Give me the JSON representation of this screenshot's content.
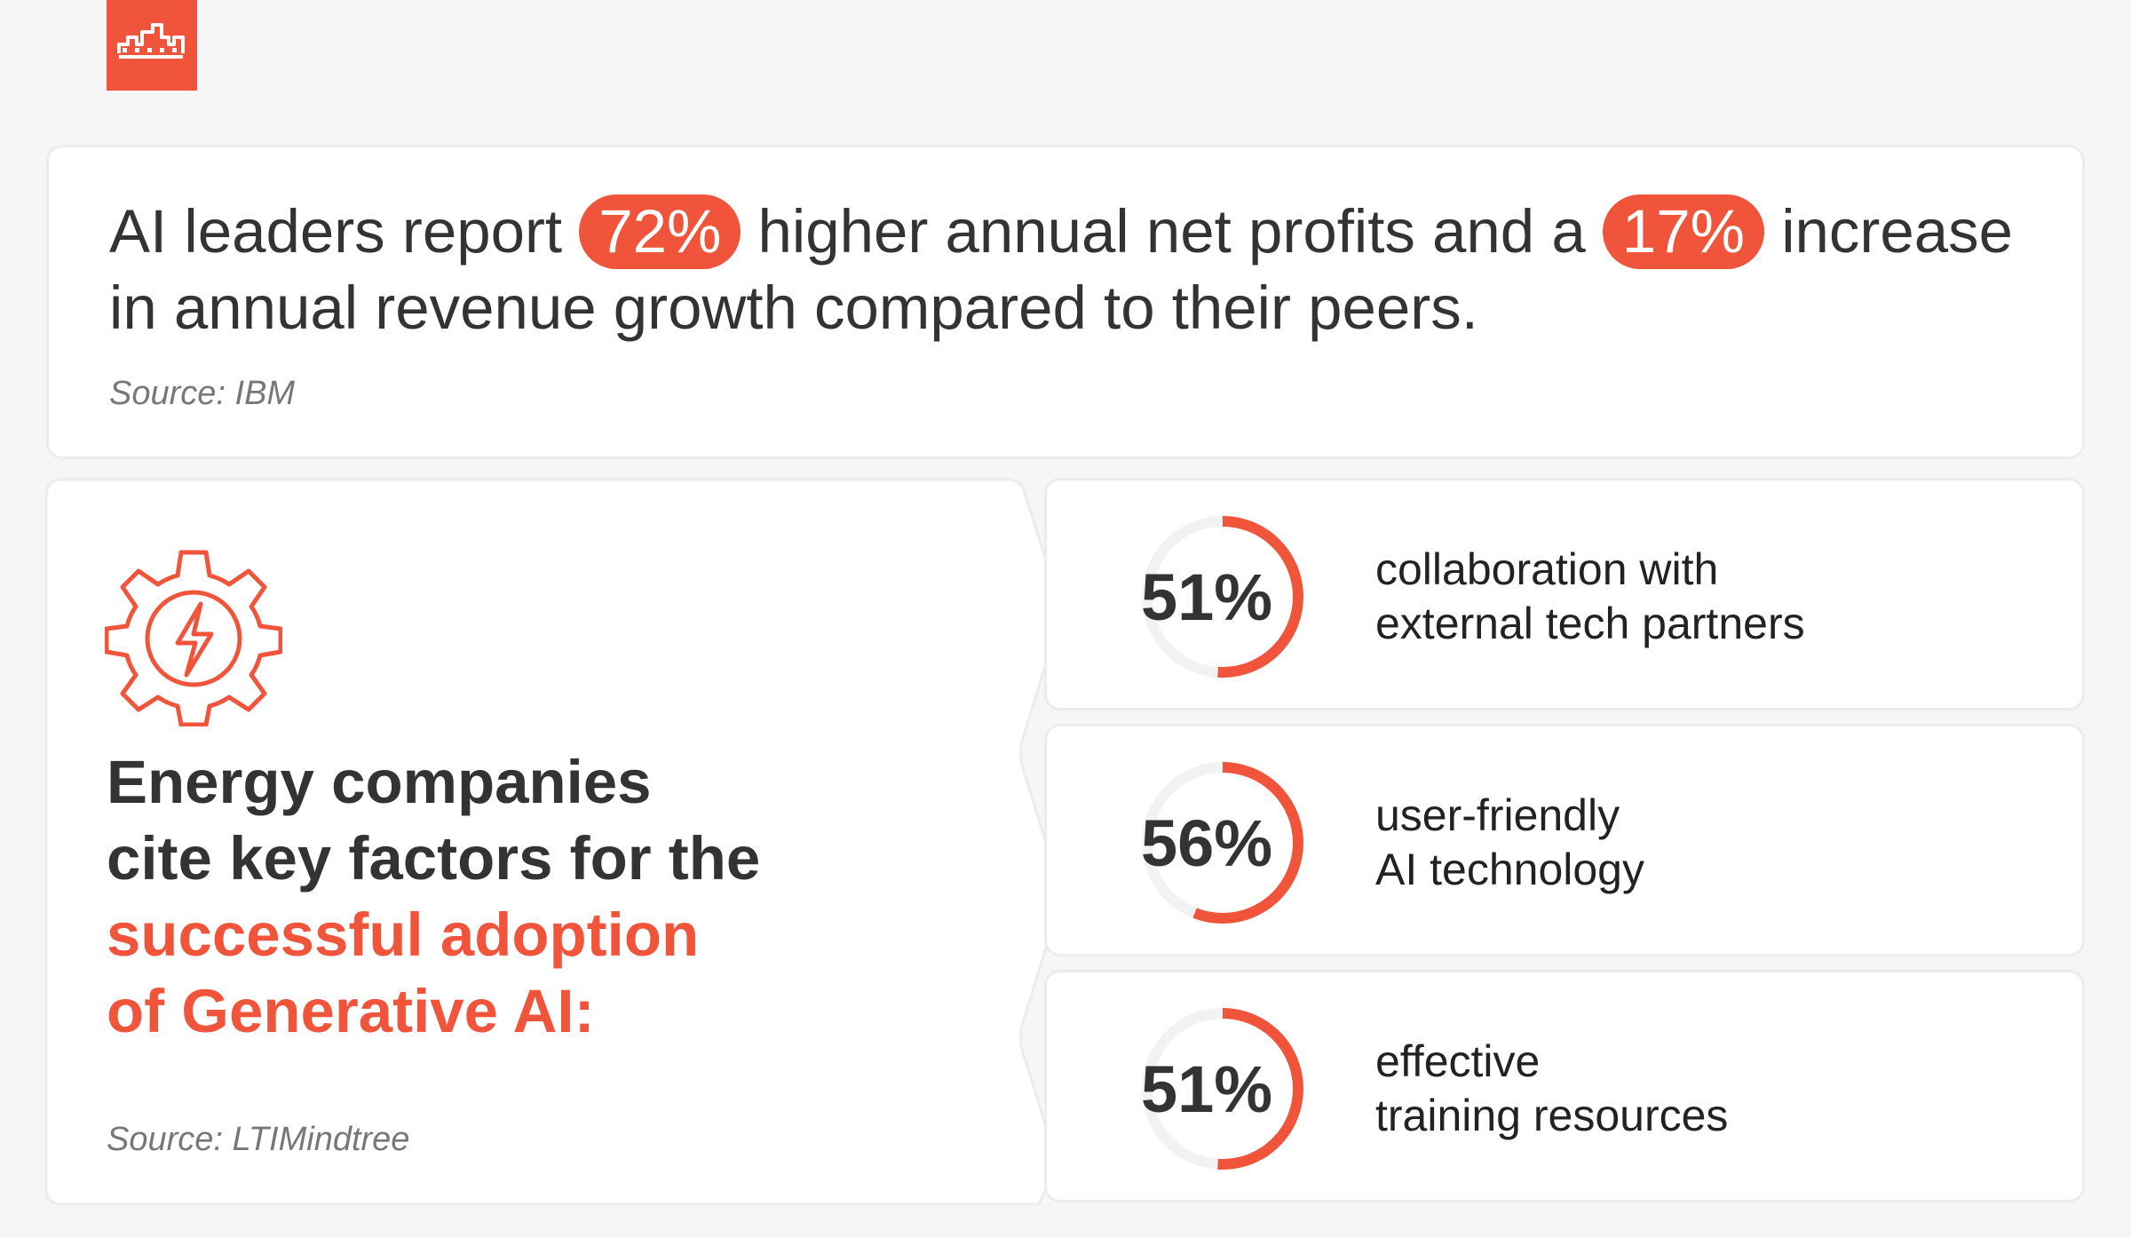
{
  "colors": {
    "accent": "#f0553b",
    "text": "#333333",
    "muted": "#777777",
    "ring_track": "#f2f2f2"
  },
  "logo": {
    "icon": "brand-logo-icon"
  },
  "headline": {
    "part1": "AI leaders report",
    "value1": "72%",
    "part2": "higher annual net profits and a",
    "value2": "17%",
    "part3": "increase in annual revenue growth compared to their peers.",
    "source": "Source: IBM"
  },
  "factors": {
    "icon": "gear-lightning-icon",
    "title_lines": [
      "Energy companies",
      "cite key factors for the"
    ],
    "highlight_lines": [
      "successful adoption",
      "of Generative AI:"
    ],
    "source": "Source: LTIMindtree",
    "items": [
      {
        "value": "51%",
        "percent": 51,
        "lines": [
          "collaboration with",
          "external tech partners"
        ]
      },
      {
        "value": "56%",
        "percent": 56,
        "lines": [
          "user-friendly",
          "AI technology"
        ]
      },
      {
        "value": "51%",
        "percent": 51,
        "lines": [
          "effective",
          "training resources"
        ]
      }
    ]
  }
}
